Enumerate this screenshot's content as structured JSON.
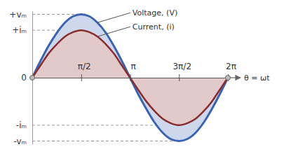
{
  "chart_data": {
    "type": "area",
    "xlabel": "θ = ωt",
    "x": [
      0,
      0.26,
      0.52,
      0.79,
      1.05,
      1.31,
      1.57,
      1.83,
      2.09,
      2.36,
      2.62,
      2.88,
      3.14,
      3.4,
      3.67,
      3.93,
      4.19,
      4.45,
      4.71,
      4.97,
      5.24,
      5.5,
      5.76,
      6.02,
      6.28
    ],
    "xlim": [
      0,
      6.28
    ],
    "xticks": [
      {
        "value": 1.57,
        "label": "π/2"
      },
      {
        "value": 3.14,
        "label": "π"
      },
      {
        "value": 4.71,
        "label": "3π/2"
      },
      {
        "value": 6.28,
        "label": "2π"
      }
    ],
    "ylim": [
      -1.05,
      1.05
    ],
    "yticks": [
      {
        "value": 1,
        "label": "+vₘ"
      },
      {
        "value": 0.75,
        "label": "+iₘ"
      },
      0,
      {
        "value": -0.75,
        "label": "-iₘ"
      },
      {
        "value": -1,
        "label": "-vₘ"
      }
    ],
    "grid": true,
    "series": [
      {
        "name": "Voltage, (V)",
        "color": "#3b63b5",
        "values": [
          0,
          0.26,
          0.5,
          0.71,
          0.87,
          0.97,
          1,
          0.97,
          0.87,
          0.71,
          0.5,
          0.26,
          0,
          -0.26,
          -0.5,
          -0.71,
          -0.87,
          -0.97,
          -1,
          -0.97,
          -0.87,
          -0.71,
          -0.5,
          -0.26,
          0
        ]
      },
      {
        "name": "Current, (i)",
        "color": "#8b2c2c",
        "values": [
          0,
          0.19,
          0.38,
          0.53,
          0.65,
          0.72,
          0.75,
          0.72,
          0.65,
          0.53,
          0.38,
          0.19,
          0,
          -0.19,
          -0.38,
          -0.53,
          -0.65,
          -0.72,
          -0.75,
          -0.72,
          -0.65,
          -0.53,
          -0.38,
          -0.19,
          0
        ]
      }
    ]
  }
}
